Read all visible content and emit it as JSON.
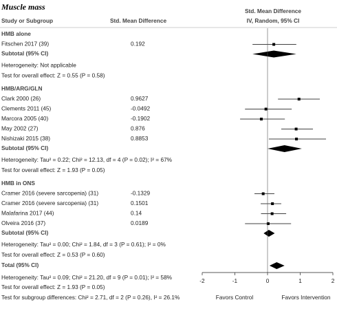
{
  "chart_data": {
    "type": "forest",
    "title": "Muscle mass",
    "left_headers": [
      "Study or Subgroup",
      "Std. Mean Difference"
    ],
    "right_headers": [
      "Std. Mean Difference",
      "IV, Random, 95% CI"
    ],
    "groups": [
      {
        "name": "HMB alone",
        "studies": [
          {
            "label": "Fitschen 2017 (39)",
            "value": 0.192,
            "ci": [
              -0.46,
              0.88
            ]
          }
        ],
        "subtotal": {
          "label": "Subtotal (95% CI)",
          "value": 0.192,
          "ci": [
            -0.46,
            0.88
          ]
        },
        "heterogeneity": "Heterogeneity: Not applicable",
        "overall_effect": "Test for overall effect: Z = 0.55 (P = 0.58)"
      },
      {
        "name": "HMB/ARG/GLN",
        "studies": [
          {
            "label": "Clark 2000 (26)",
            "value": 0.9627,
            "ci": [
              0.32,
              1.6
            ]
          },
          {
            "label": "Clements 2011 (45)",
            "value": -0.0492,
            "ci": [
              -0.69,
              0.74
            ]
          },
          {
            "label": "Marcora 2005 (40)",
            "value": -0.1902,
            "ci": [
              -0.84,
              0.53
            ]
          },
          {
            "label": "May 2002 (27)",
            "value": 0.876,
            "ci": [
              0.42,
              1.39
            ]
          },
          {
            "label": "Nishizaki 2015 (38)",
            "value": 0.8853,
            "ci": [
              0.04,
              1.79
            ]
          }
        ],
        "subtotal": {
          "label": "Subtotal (95% CI)",
          "value": 0.52,
          "ci": [
            0.0,
            1.05
          ]
        },
        "heterogeneity": "Heterogeneity: Tau² = 0.22; Chi² = 12.13, df = 4 (P = 0.02); I² = 67%",
        "overall_effect": "Test for overall effect: Z = 1.93 (P = 0.05)"
      },
      {
        "name": "HMB in ONS",
        "studies": [
          {
            "label": "Cramer 2016 (severe sarcopenia) (31)",
            "value": -0.1329,
            "ci": [
              -0.4,
              0.21
            ]
          },
          {
            "label": "Cramer 2016 (severe sarcopenia) (31)",
            "value": 0.1501,
            "ci": [
              -0.21,
              0.42
            ]
          },
          {
            "label": "Malafarina 2017 (44)",
            "value": 0.14,
            "ci": [
              -0.2,
              0.57
            ]
          },
          {
            "label": "Olveira 2016 (37)",
            "value": 0.0189,
            "ci": [
              -0.69,
              0.72
            ]
          }
        ],
        "subtotal": {
          "label": "Subtotal (95% CI)",
          "value": 0.04,
          "ci": [
            -0.12,
            0.22
          ]
        },
        "heterogeneity": "Heterogeneity: Tau² = 0.00; Chi² = 1.84, df = 3 (P = 0.61); I² = 0%",
        "overall_effect": "Test for overall effect: Z = 0.53 (P = 0.60)"
      }
    ],
    "total": {
      "label": "Total (95% CI)",
      "value": 0.28,
      "ci": [
        0.06,
        0.52
      ],
      "heterogeneity": "Heterogeneity: Tau² = 0.09; Chi² = 21.20, df = 9 (P = 0.01); I² = 58%",
      "overall_effect": "Test for overall effect: Z = 1.93 (P = 0.05)",
      "subgroup_differences": "Test for subgroup differences: Chi² = 2.71, df = 2 (P = 0.26), I² = 26.1%"
    },
    "xlim": [
      -2,
      2
    ],
    "xticks": [
      -2,
      -1,
      0,
      1,
      2
    ],
    "x_labels": [
      "Favors Control",
      "Favors Intervention"
    ],
    "color": "#000000"
  }
}
